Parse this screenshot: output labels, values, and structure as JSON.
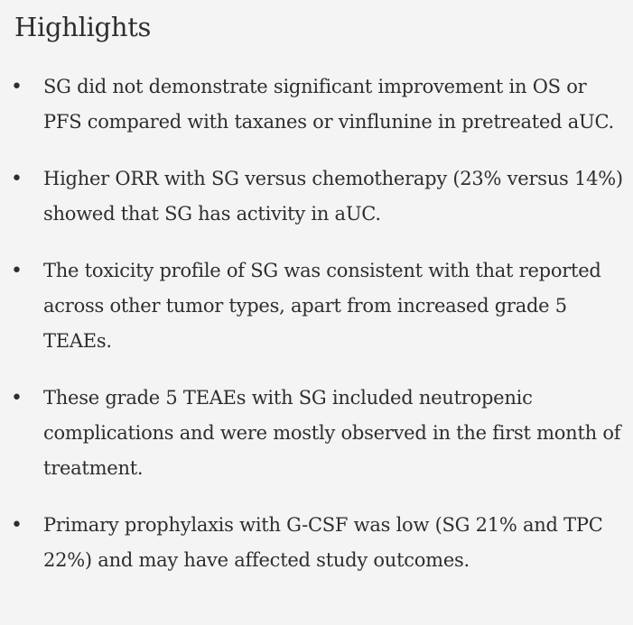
{
  "highlights": {
    "title": "Highlights",
    "bullet_glyph": "•",
    "items": [
      {
        "text": "SG did not demonstrate significant improvement in OS or PFS compared with taxanes or vinflunine in pretreated aUC."
      },
      {
        "text": "Higher ORR with SG versus chemotherapy (23% versus 14%) showed that SG has activity in aUC."
      },
      {
        "text": "The toxicity profile of SG was consistent with that reported across other tumor types, apart from increased grade 5 TEAEs."
      },
      {
        "text": "These grade 5 TEAEs with SG included neutropenic complications and were mostly observed in the first month of treatment."
      },
      {
        "text": "Primary prophylaxis with G-CSF was low (SG 21% and TPC 22%) and may have affected study outcomes."
      }
    ]
  },
  "colors": {
    "background": "#f4f4f4",
    "text": "#2e2e2e"
  }
}
